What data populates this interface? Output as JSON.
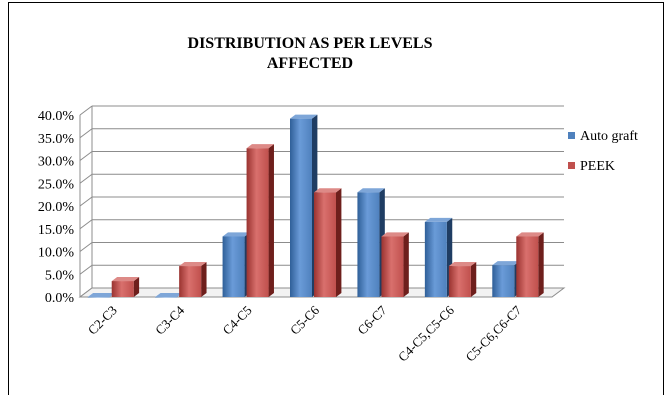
{
  "chart_data": {
    "type": "bar",
    "title_line1": "DISTRIBUTION AS PER LEVELS",
    "title_line2": "AFFECTED",
    "categories": [
      "C2-C3",
      "C3-C4",
      "C4-C5",
      "C5-C6",
      "C6-C7",
      "C4-C5,C5-C6",
      "C5-C6,C6-C7"
    ],
    "series": [
      {
        "name": "Auto graft",
        "values": [
          0,
          0,
          13.3,
          39.2,
          23.0,
          16.5,
          7.0
        ],
        "color": "#4f81bd"
      },
      {
        "name": "PEEK",
        "values": [
          3.5,
          6.8,
          32.7,
          23.0,
          13.3,
          6.8,
          13.3
        ],
        "color": "#c0504d"
      }
    ],
    "ylim": [
      0,
      40
    ],
    "yticks": [
      "0.0%",
      "5.0%",
      "10.0%",
      "15.0%",
      "20.0%",
      "25.0%",
      "30.0%",
      "35.0%",
      "40.0%"
    ],
    "ytick_values": [
      0,
      5,
      10,
      15,
      20,
      25,
      30,
      35,
      40
    ],
    "grid": true,
    "legend_position": "right",
    "xlabel": "",
    "ylabel": ""
  }
}
